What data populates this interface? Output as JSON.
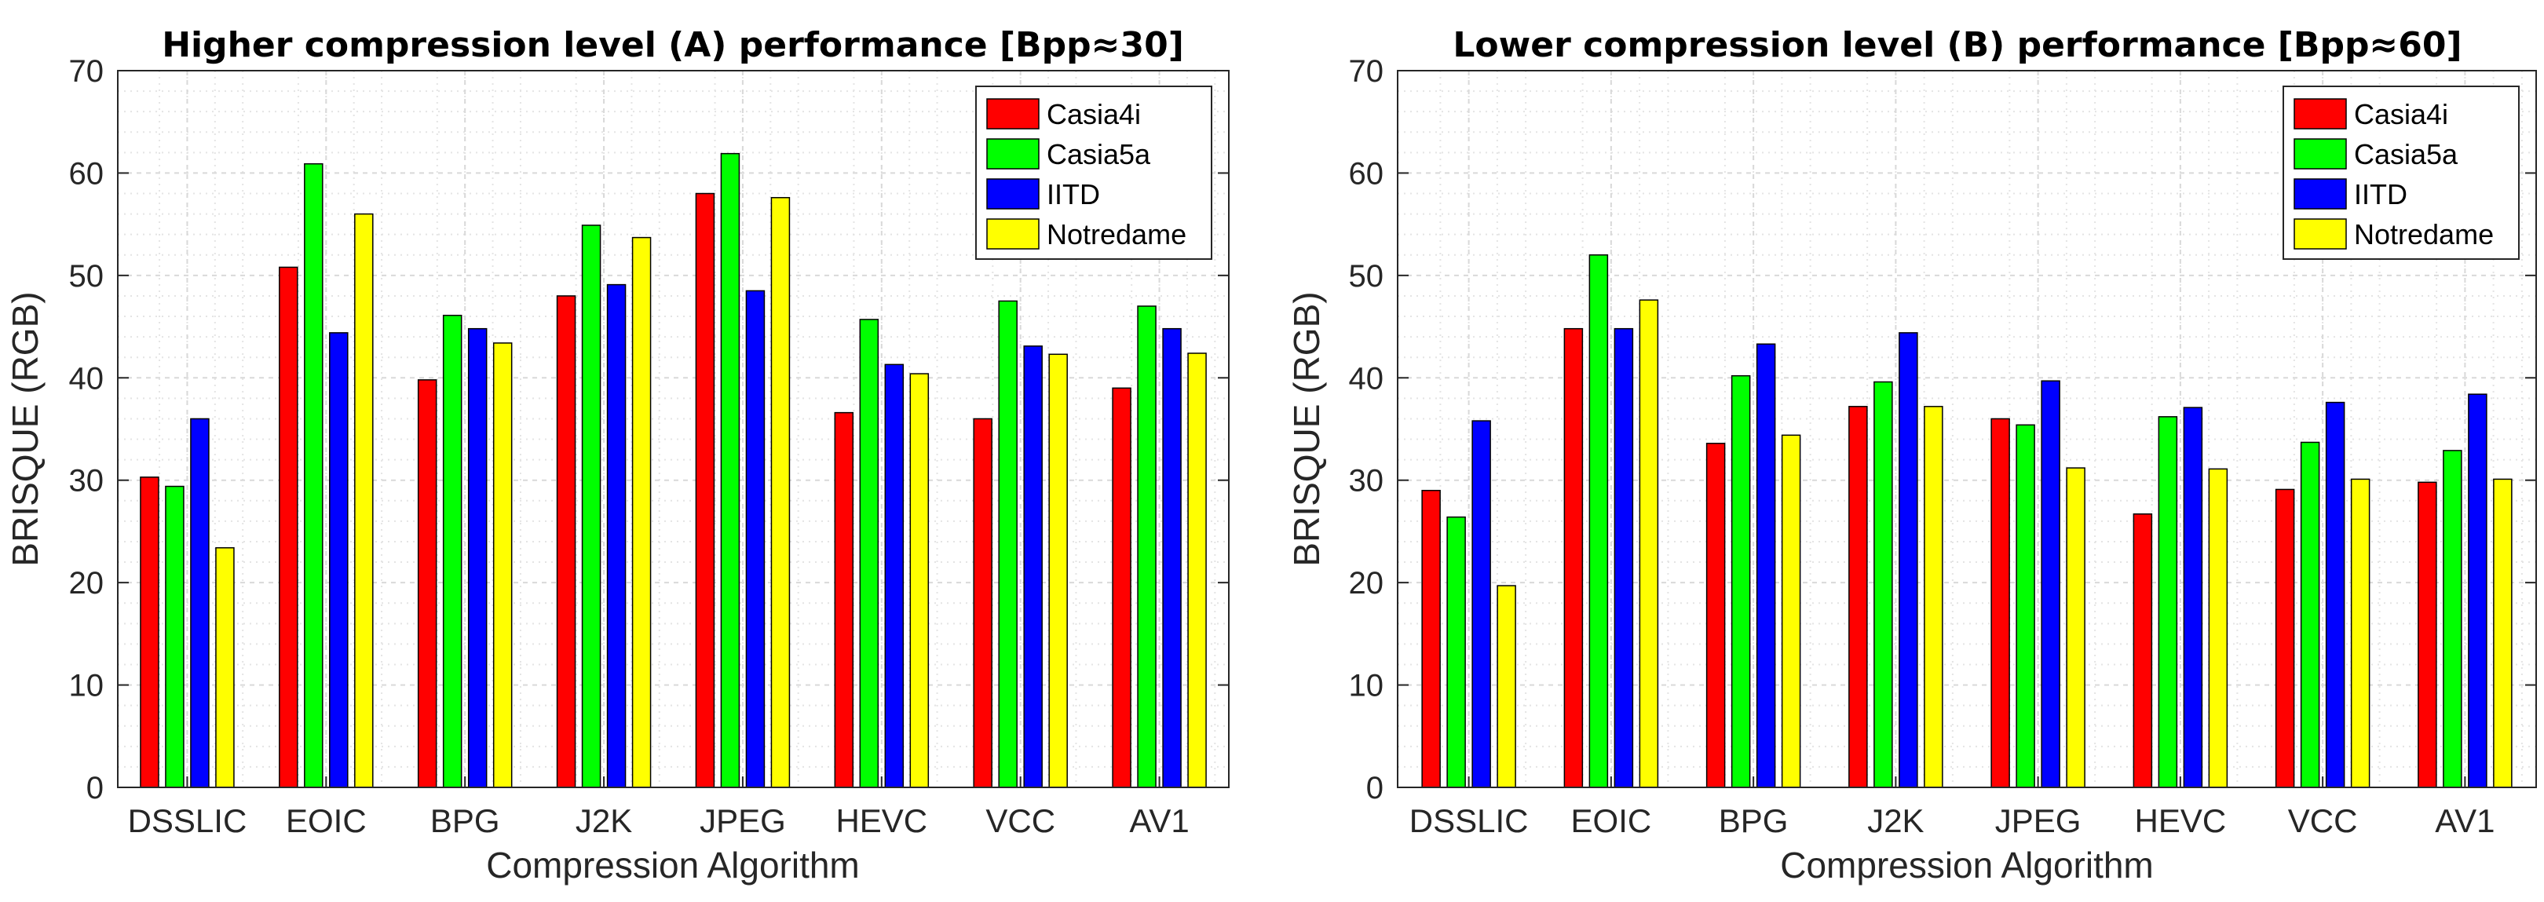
{
  "colors": {
    "Casia4i": "#ff0000",
    "Casia5a": "#00ff00",
    "IITD": "#0000ff",
    "Notredame": "#ffff00",
    "bar_edge": "#000000",
    "grid": "#d9d9d9",
    "axis": "#262626"
  },
  "chart_data": [
    {
      "type": "bar",
      "title": "Higher compression level (A) performance [Bpp≈30]",
      "xlabel": "Compression Algorithm",
      "ylabel": "BRISQUE (RGB)",
      "ylim": [
        0,
        70
      ],
      "yticks": [
        "0",
        "10",
        "20",
        "30",
        "40",
        "50",
        "60",
        "70"
      ],
      "grid": true,
      "legend_position": "top-right",
      "categories": [
        "DSSLIC",
        "EOIC",
        "BPG",
        "J2K",
        "JPEG",
        "HEVC",
        "VCC",
        "AV1"
      ],
      "series": [
        {
          "name": "Casia4i",
          "values": [
            30.3,
            50.8,
            39.8,
            48.0,
            58.0,
            36.6,
            36.0,
            39.0
          ]
        },
        {
          "name": "Casia5a",
          "values": [
            29.4,
            60.9,
            46.1,
            54.9,
            61.9,
            45.7,
            47.5,
            47.0
          ]
        },
        {
          "name": "IITD",
          "values": [
            36.0,
            44.4,
            44.8,
            49.1,
            48.5,
            41.3,
            43.1,
            44.8
          ]
        },
        {
          "name": "Notredame",
          "values": [
            23.4,
            56.0,
            43.4,
            53.7,
            57.6,
            40.4,
            42.3,
            42.4
          ]
        }
      ]
    },
    {
      "type": "bar",
      "title": "Lower compression level (B) performance [Bpp≈60]",
      "xlabel": "Compression Algorithm",
      "ylabel": "BRISQUE (RGB)",
      "ylim": [
        0,
        70
      ],
      "yticks": [
        "0",
        "10",
        "20",
        "30",
        "40",
        "50",
        "60",
        "70"
      ],
      "grid": true,
      "legend_position": "top-right",
      "categories": [
        "DSSLIC",
        "EOIC",
        "BPG",
        "J2K",
        "JPEG",
        "HEVC",
        "VCC",
        "AV1"
      ],
      "series": [
        {
          "name": "Casia4i",
          "values": [
            29.0,
            44.8,
            33.6,
            37.2,
            36.0,
            26.7,
            29.1,
            29.8
          ]
        },
        {
          "name": "Casia5a",
          "values": [
            26.4,
            52.0,
            40.2,
            39.6,
            35.4,
            36.2,
            33.7,
            32.9
          ]
        },
        {
          "name": "IITD",
          "values": [
            35.8,
            44.8,
            43.3,
            44.4,
            39.7,
            37.1,
            37.6,
            38.4
          ]
        },
        {
          "name": "Notredame",
          "values": [
            19.7,
            47.6,
            34.4,
            37.2,
            31.2,
            31.1,
            30.1,
            30.1
          ]
        }
      ]
    }
  ]
}
